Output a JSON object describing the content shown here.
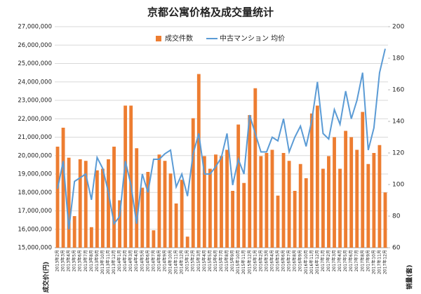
{
  "chart_data": {
    "type": "bar_line",
    "title": "京都公寓价格及成交量统计",
    "y_label": "成交价(円)",
    "y2_label": "销量(套)",
    "categories": [
      "2013年2月",
      "2013年3月",
      "2013年4月",
      "2013年5月",
      "2013年6月",
      "2013年7月",
      "2013年8月",
      "2013年9月",
      "2013年10月",
      "2013年11月",
      "2013年12月",
      "2014年1月",
      "2014年2月",
      "2014年3月",
      "2014年4月",
      "2014年5月",
      "2014年6月",
      "2014年7月",
      "2014年8月",
      "2014年9月",
      "2014年10月",
      "2014年11月",
      "2014年12月",
      "2015年1月",
      "2015年2月",
      "2015年3月",
      "2015年4月",
      "2015年5月",
      "2015年6月",
      "2015年7月",
      "2015年8月",
      "2015年9月",
      "2015年10月",
      "2015年11月",
      "2015年12月",
      "2016年1月",
      "2016年2月",
      "2016年3月",
      "2016年4月",
      "2016年5月",
      "2016年6月",
      "2016年7月",
      "2016年8月",
      "2016年9月",
      "2016年10月",
      "2016年11月",
      "2016年12月",
      "2017年1月",
      "2017年2月",
      "2017年3月",
      "2017年4月",
      "2017年5月",
      "2017年6月",
      "2017年7月",
      "2017年8月",
      "2017年9月",
      "2017年10月",
      "2017年11月",
      "2017年12月"
    ],
    "series": [
      {
        "name": "成交件数",
        "color": "#ed7d31",
        "axis": "y2",
        "kind": "bar",
        "values": [
          124,
          136,
          117,
          80,
          116,
          115,
          73,
          109,
          110,
          116,
          124,
          90,
          150,
          150,
          123,
          98,
          108,
          71,
          119,
          115,
          107,
          88,
          103,
          67,
          142,
          170,
          118,
          110,
          119,
          118,
          122,
          96,
          138,
          101,
          144,
          161,
          118,
          120,
          122,
          93,
          120,
          115,
          96,
          113,
          104,
          145,
          150,
          110,
          118,
          130,
          110,
          134,
          130,
          122,
          146,
          113,
          120,
          125,
          95
        ]
      },
      {
        "name": "中古マンション 均价",
        "color": "#5b9bd5",
        "axis": "y",
        "kind": "line",
        "values": [
          18200000,
          19700000,
          16000000,
          18600000,
          18800000,
          19000000,
          17600000,
          19900000,
          19300000,
          18000000,
          16300000,
          16700000,
          19700000,
          18400000,
          16300000,
          19000000,
          18000000,
          19800000,
          19800000,
          20100000,
          20300000,
          18300000,
          19000000,
          17800000,
          20100000,
          21200000,
          19000000,
          19000000,
          19400000,
          19900000,
          21200000,
          18400000,
          19800000,
          19000000,
          22200000,
          21200000,
          20200000,
          20200000,
          21000000,
          20800000,
          22000000,
          20200000,
          21000000,
          21600000,
          20500000,
          21900000,
          24000000,
          21200000,
          20900000,
          22500000,
          21700000,
          23500000,
          22000000,
          23000000,
          24500000,
          20300000,
          21500000,
          24500000,
          25800000
        ]
      }
    ],
    "ylim": [
      15000000,
      27000000
    ],
    "yticks": [
      {
        "value": 15000000,
        "label": "15,000,000"
      },
      {
        "value": 16000000,
        "label": "16,000,000"
      },
      {
        "value": 17000000,
        "label": "17,000,000"
      },
      {
        "value": 18000000,
        "label": "18,000,000"
      },
      {
        "value": 19000000,
        "label": "19,000,000"
      },
      {
        "value": 20000000,
        "label": "20,000,000"
      },
      {
        "value": 21000000,
        "label": "21,000,000"
      },
      {
        "value": 22000000,
        "label": "22,000,000"
      },
      {
        "value": 23000000,
        "label": "23,000,000"
      },
      {
        "value": 24000000,
        "label": "24,000,000"
      },
      {
        "value": 25000000,
        "label": "25,000,000"
      },
      {
        "value": 26000000,
        "label": "26,000,000"
      },
      {
        "value": 27000000,
        "label": "27,000,000"
      }
    ],
    "y2lim": [
      60,
      200
    ],
    "y2ticks": [
      60,
      80,
      100,
      120,
      140,
      160,
      180,
      200
    ],
    "grid": true
  }
}
